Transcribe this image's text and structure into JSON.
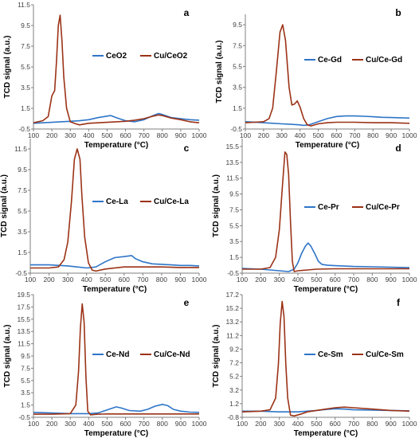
{
  "chart_data": [
    {
      "panel_label": "a",
      "type": "line",
      "xlabel": "Temperature (°C)",
      "ylabel": "TCD signal (a.u.)",
      "xlim": [
        100,
        1000
      ],
      "ylim": [
        -0.5,
        11.5
      ],
      "xticks": [
        100,
        200,
        300,
        400,
        500,
        600,
        700,
        800,
        900,
        1000
      ],
      "yticks": [
        -0.5,
        1.5,
        3.5,
        5.5,
        7.5,
        9.5,
        11.5
      ],
      "ytick_labels": [
        "-0.5",
        "1.5",
        "3.5",
        "5.5",
        "7.5",
        "9.5",
        "11.5"
      ],
      "legend_position": "top-center",
      "grid": false,
      "series": [
        {
          "name": "CeO2",
          "color": "#2e75c8",
          "x": [
            100,
            150,
            200,
            250,
            300,
            350,
            400,
            450,
            500,
            520,
            550,
            600,
            650,
            700,
            750,
            780,
            800,
            850,
            900,
            950,
            1000
          ],
          "y": [
            0.05,
            0.1,
            0.15,
            0.2,
            0.25,
            0.3,
            0.4,
            0.6,
            0.75,
            0.8,
            0.6,
            0.3,
            0.2,
            0.4,
            0.8,
            1.0,
            0.9,
            0.6,
            0.5,
            0.4,
            0.35
          ]
        },
        {
          "name": "Cu/CeO2",
          "color": "#9b3216",
          "x": [
            100,
            150,
            180,
            200,
            215,
            225,
            235,
            245,
            255,
            265,
            280,
            300,
            330,
            350,
            400,
            450,
            500,
            550,
            600,
            650,
            700,
            750,
            780,
            800,
            850,
            900,
            950,
            1000
          ],
          "y": [
            0.1,
            0.3,
            0.7,
            2.7,
            3.2,
            6.0,
            9.5,
            10.5,
            8.0,
            4.5,
            1.5,
            0.2,
            0.0,
            -0.1,
            0.05,
            0.1,
            0.15,
            0.2,
            0.25,
            0.35,
            0.5,
            0.75,
            0.85,
            0.8,
            0.55,
            0.4,
            0.2,
            0.1
          ]
        }
      ]
    },
    {
      "panel_label": "b",
      "type": "line",
      "xlabel": "Temperature (°C)",
      "ylabel": "TCD signal (a.u.)",
      "xlim": [
        100,
        1000
      ],
      "ylim": [
        -0.5,
        10.5
      ],
      "xticks": [
        100,
        200,
        300,
        400,
        500,
        600,
        700,
        800,
        900,
        1000
      ],
      "yticks": [
        -0.5,
        1.5,
        3.5,
        5.5,
        7.5,
        9.5
      ],
      "ytick_labels": [
        "-0.5",
        "1.5",
        "3.5",
        "5.5",
        "7.5",
        "9.5"
      ],
      "legend_position": "center-right",
      "grid": false,
      "series": [
        {
          "name": "Ce-Gd",
          "color": "#2e75c8",
          "x": [
            100,
            200,
            250,
            300,
            350,
            400,
            420,
            450,
            500,
            550,
            600,
            650,
            700,
            750,
            800,
            850,
            900,
            950,
            1000
          ],
          "y": [
            0.2,
            0.1,
            0.05,
            0.0,
            -0.05,
            -0.1,
            -0.15,
            -0.1,
            0.2,
            0.5,
            0.7,
            0.75,
            0.75,
            0.72,
            0.68,
            0.62,
            0.6,
            0.58,
            0.55
          ]
        },
        {
          "name": "Cu/Ce-Gd",
          "color": "#9b3216",
          "x": [
            100,
            150,
            200,
            230,
            250,
            270,
            290,
            305,
            320,
            340,
            355,
            370,
            385,
            400,
            420,
            440,
            460,
            500,
            550,
            600,
            700,
            800,
            900,
            1000
          ],
          "y": [
            0.1,
            0.15,
            0.2,
            0.5,
            1.5,
            5.0,
            8.8,
            9.5,
            8.0,
            3.5,
            1.8,
            1.9,
            2.2,
            1.6,
            0.5,
            -0.1,
            -0.2,
            0.0,
            0.1,
            0.15,
            0.15,
            0.1,
            0.1,
            0.05
          ]
        }
      ]
    },
    {
      "panel_label": "c",
      "type": "line",
      "xlabel": "Temperature (°C)",
      "ylabel": "TCD signal (a.u.)",
      "xlim": [
        100,
        1000
      ],
      "ylim": [
        -0.5,
        12.5
      ],
      "xticks": [
        100,
        200,
        300,
        400,
        500,
        600,
        700,
        800,
        900,
        1000
      ],
      "yticks": [
        -0.5,
        1.5,
        3.5,
        5.5,
        7.5,
        9.5,
        11.5
      ],
      "ytick_labels": [
        "-0.5",
        "1.5",
        "3.5",
        "5.5",
        "7.5",
        "9.5",
        "11.5"
      ],
      "legend_position": "center-right",
      "grid": false,
      "series": [
        {
          "name": "Ce-La",
          "color": "#2e75c8",
          "x": [
            100,
            200,
            300,
            350,
            400,
            450,
            500,
            550,
            600,
            640,
            660,
            700,
            750,
            800,
            850,
            900,
            950,
            1000
          ],
          "y": [
            0.3,
            0.3,
            0.2,
            0.1,
            0.0,
            0.1,
            0.6,
            1.0,
            1.1,
            1.2,
            0.9,
            0.6,
            0.4,
            0.35,
            0.3,
            0.25,
            0.25,
            0.2
          ]
        },
        {
          "name": "Cu/Ce-La",
          "color": "#9b3216",
          "x": [
            100,
            200,
            250,
            280,
            300,
            320,
            335,
            350,
            365,
            375,
            390,
            410,
            430,
            450,
            500,
            600,
            700,
            800,
            900,
            1000
          ],
          "y": [
            0.0,
            0.0,
            0.1,
            0.8,
            2.5,
            6.5,
            10.5,
            11.5,
            10.5,
            7.0,
            3.0,
            0.5,
            -0.2,
            -0.3,
            -0.1,
            0.1,
            0.1,
            0.1,
            0.05,
            0.05
          ]
        }
      ]
    },
    {
      "panel_label": "d",
      "type": "line",
      "xlabel": "Temperature (°C)",
      "ylabel": "TCD signal (a.u.)",
      "xlim": [
        100,
        1000
      ],
      "ylim": [
        -0.5,
        16.5
      ],
      "xticks": [
        100,
        200,
        300,
        400,
        500,
        600,
        700,
        800,
        900,
        1000
      ],
      "yticks": [
        -0.5,
        1.5,
        3.5,
        5.5,
        7.5,
        9.5,
        11.5,
        13.5,
        15.5
      ],
      "ytick_labels": [
        "-0.5",
        "1.5",
        "3.5",
        "5.5",
        "7.5",
        "9.5",
        "11.5",
        "13.5",
        "15.5"
      ],
      "legend_position": "center-right",
      "grid": false,
      "series": [
        {
          "name": "Ce-Pr",
          "color": "#2e75c8",
          "x": [
            100,
            200,
            300,
            350,
            380,
            400,
            420,
            440,
            455,
            470,
            490,
            510,
            530,
            560,
            600,
            700,
            800,
            900,
            1000
          ],
          "y": [
            0.1,
            0.0,
            -0.2,
            -0.3,
            0.0,
            0.8,
            2.0,
            2.9,
            3.3,
            2.9,
            2.0,
            1.0,
            0.6,
            0.5,
            0.45,
            0.35,
            0.3,
            0.25,
            0.2
          ]
        },
        {
          "name": "Cu/Ce-Pr",
          "color": "#9b3216",
          "x": [
            100,
            200,
            250,
            280,
            300,
            315,
            330,
            340,
            350,
            360,
            370,
            380,
            400,
            450,
            500,
            600,
            700,
            800,
            900,
            1000
          ],
          "y": [
            0.0,
            0.0,
            0.2,
            1.5,
            5.0,
            10.0,
            14.8,
            14.5,
            12.0,
            6.0,
            1.0,
            -0.3,
            -0.2,
            -0.1,
            0.0,
            0.05,
            0.05,
            0.05,
            0.05,
            0.05
          ]
        }
      ]
    },
    {
      "panel_label": "e",
      "type": "line",
      "xlabel": "Temperature (°C)",
      "ylabel": "TCD signal (a.u.)",
      "xlim": [
        100,
        1000
      ],
      "ylim": [
        -0.5,
        19.5
      ],
      "xticks": [
        100,
        200,
        300,
        400,
        500,
        600,
        700,
        800,
        900,
        1000
      ],
      "yticks": [
        -0.5,
        1.5,
        3.5,
        5.5,
        7.5,
        9.5,
        11.5,
        13.5,
        15.5,
        17.5,
        19.5
      ],
      "ytick_labels": [
        "-0.5",
        "1.5",
        "3.5",
        "5.5",
        "7.5",
        "9.5",
        "11.5",
        "13.5",
        "15.5",
        "17.5",
        "19.5"
      ],
      "legend_position": "center-right",
      "grid": false,
      "series": [
        {
          "name": "Ce-Nd",
          "color": "#2e75c8",
          "x": [
            100,
            200,
            300,
            400,
            450,
            500,
            550,
            580,
            620,
            680,
            720,
            760,
            800,
            830,
            860,
            900,
            950,
            1000
          ],
          "y": [
            0.3,
            0.2,
            0.1,
            0.1,
            0.2,
            0.7,
            1.2,
            1.0,
            0.6,
            0.5,
            0.8,
            1.3,
            1.6,
            1.4,
            0.8,
            0.5,
            0.35,
            0.3
          ]
        },
        {
          "name": "Cu/Ce-Nd",
          "color": "#9b3216",
          "x": [
            100,
            200,
            300,
            330,
            345,
            355,
            365,
            375,
            385,
            395,
            410,
            450,
            500,
            600,
            700,
            800,
            900,
            1000
          ],
          "y": [
            0.0,
            0.0,
            0.1,
            1.5,
            7.0,
            14.0,
            18.0,
            15.0,
            6.0,
            0.5,
            -0.1,
            0.0,
            0.05,
            0.05,
            0.05,
            0.05,
            0.05,
            0.05
          ]
        }
      ]
    },
    {
      "panel_label": "f",
      "type": "line",
      "xlabel": "Temperature (°C)",
      "ylabel": "TCD signal (a.u.)",
      "xlim": [
        100,
        1000
      ],
      "ylim": [
        -0.8,
        17.2
      ],
      "xticks": [
        100,
        200,
        300,
        400,
        500,
        600,
        700,
        800,
        900,
        1000
      ],
      "yticks": [
        -0.8,
        1.2,
        3.2,
        5.2,
        7.2,
        9.2,
        11.2,
        13.2,
        15.2,
        17.2
      ],
      "ytick_labels": [
        "-0.8",
        "1.2",
        "3.2",
        "5.2",
        "7.2",
        "9.2",
        "11.2",
        "13.2",
        "15.2",
        "17.2"
      ],
      "legend_position": "center-right",
      "grid": false,
      "series": [
        {
          "name": "Ce-Sm",
          "color": "#2e75c8",
          "x": [
            100,
            200,
            300,
            400,
            450,
            500,
            550,
            600,
            650,
            700,
            800,
            900,
            1000
          ],
          "y": [
            0.1,
            0.1,
            0.0,
            0.0,
            0.1,
            0.2,
            0.35,
            0.45,
            0.4,
            0.3,
            0.25,
            0.2,
            0.15
          ]
        },
        {
          "name": "Cu/Ce-Sm",
          "color": "#9b3216",
          "x": [
            100,
            200,
            250,
            280,
            295,
            305,
            315,
            325,
            335,
            345,
            360,
            380,
            420,
            450,
            500,
            550,
            600,
            650,
            700,
            800,
            900,
            1000
          ],
          "y": [
            0.0,
            0.1,
            0.3,
            2.0,
            7.0,
            13.0,
            16.2,
            14.0,
            7.0,
            2.0,
            -0.5,
            -0.6,
            -0.3,
            0.0,
            0.2,
            0.4,
            0.6,
            0.7,
            0.6,
            0.4,
            0.2,
            0.1
          ]
        }
      ]
    }
  ]
}
